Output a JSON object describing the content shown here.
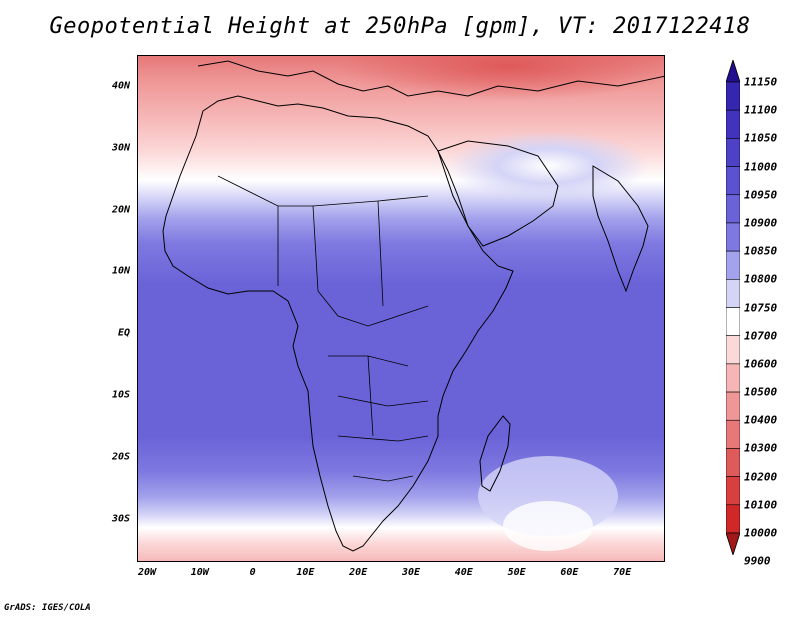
{
  "title": "Geopotential Height at 250hPa [gpm], VT: 2017122418",
  "credit": "GrADS: IGES/COLA",
  "map": {
    "lon_range": [
      -20,
      80
    ],
    "lat_range": [
      -37,
      45
    ],
    "lat_labels": [
      {
        "lat": 40,
        "text": "40N"
      },
      {
        "lat": 30,
        "text": "30N"
      },
      {
        "lat": 20,
        "text": "20N"
      },
      {
        "lat": 10,
        "text": "10N"
      },
      {
        "lat": 0,
        "text": "EQ"
      },
      {
        "lat": -10,
        "text": "10S"
      },
      {
        "lat": -20,
        "text": "20S"
      },
      {
        "lat": -30,
        "text": "30S"
      }
    ],
    "lon_labels": [
      {
        "lon": -20,
        "text": "20W"
      },
      {
        "lon": -10,
        "text": "10W"
      },
      {
        "lon": 0,
        "text": "0"
      },
      {
        "lon": 10,
        "text": "10E"
      },
      {
        "lon": 20,
        "text": "20E"
      },
      {
        "lon": 30,
        "text": "30E"
      },
      {
        "lon": 40,
        "text": "40E"
      },
      {
        "lon": 50,
        "text": "50E"
      },
      {
        "lon": 60,
        "text": "60E"
      },
      {
        "lon": 70,
        "text": "70E"
      }
    ]
  },
  "colorbar": {
    "levels": [
      "11150",
      "11100",
      "11050",
      "11000",
      "10950",
      "10900",
      "10850",
      "10800",
      "10750",
      "10700",
      "10600",
      "10500",
      "10400",
      "10300",
      "10200",
      "10100",
      "10000",
      "9900"
    ],
    "colors": [
      "#2a1a9e",
      "#3526b0",
      "#4133be",
      "#4d41c8",
      "#5a52d0",
      "#6a63d8",
      "#7e79e0",
      "#a3a2ec",
      "#d4d4f7",
      "#ffffff",
      "#fcd9d9",
      "#f6b6b6",
      "#ef9797",
      "#e67878",
      "#df5a5a",
      "#da3f3f",
      "#d02828",
      "#b31c1c"
    ],
    "arrow_top_color": "#220f90",
    "arrow_bottom_color": "#a01818"
  }
}
